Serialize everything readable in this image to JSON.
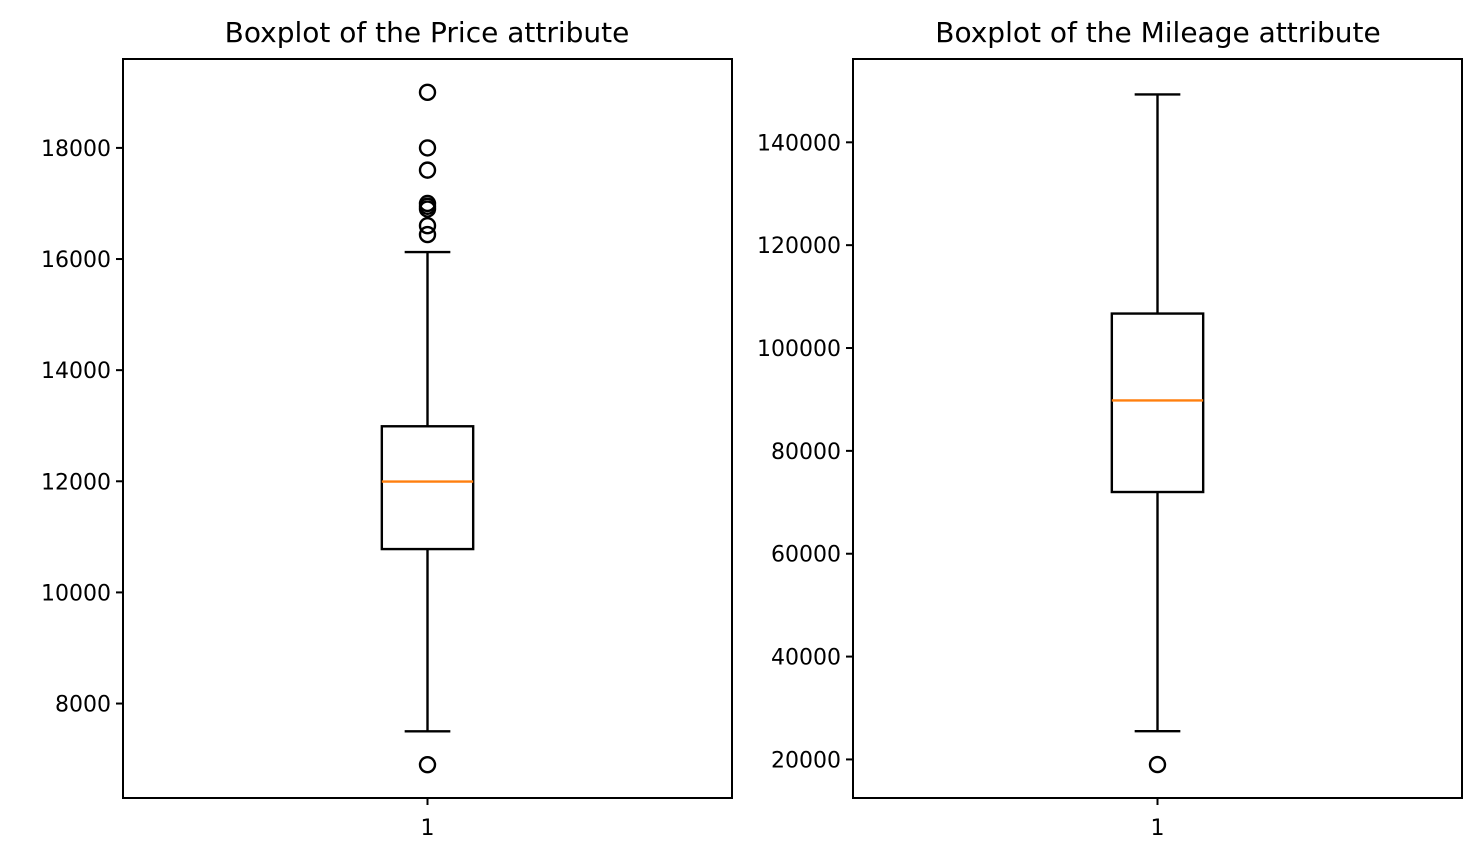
{
  "chart_data": [
    {
      "type": "box",
      "title": "Boxplot of the Price attribute",
      "categories": [
        "1"
      ],
      "ylim": [
        6300,
        19600
      ],
      "yticks": [
        8000,
        10000,
        12000,
        14000,
        16000,
        18000
      ],
      "ytick_labels": [
        "8000",
        "10000",
        "12000",
        "14000",
        "16000",
        "18000"
      ],
      "box": {
        "whisker_low": 7500,
        "q1": 10780,
        "median": 11995,
        "q3": 12990,
        "whisker_high": 16125
      },
      "fliers": [
        6900,
        16440,
        16600,
        16900,
        16950,
        17000,
        17600,
        18000,
        19000
      ],
      "xlabel": "",
      "ylabel": "",
      "grid": false
    },
    {
      "type": "box",
      "title": "Boxplot of the Mileage attribute",
      "categories": [
        "1"
      ],
      "ylim": [
        12500,
        156200
      ],
      "yticks": [
        20000,
        40000,
        60000,
        80000,
        100000,
        120000,
        140000
      ],
      "ytick_labels": [
        "20000",
        "40000",
        "60000",
        "80000",
        "100000",
        "120000",
        "140000"
      ],
      "box": {
        "whisker_low": 25500,
        "q1": 72000,
        "median": 89800,
        "q3": 106700,
        "whisker_high": 149300
      },
      "fliers": [
        19000
      ],
      "xlabel": "",
      "ylabel": "",
      "grid": false
    }
  ],
  "colors": {
    "median": "#ff7f0e",
    "box": "#000000",
    "background": "#ffffff"
  }
}
